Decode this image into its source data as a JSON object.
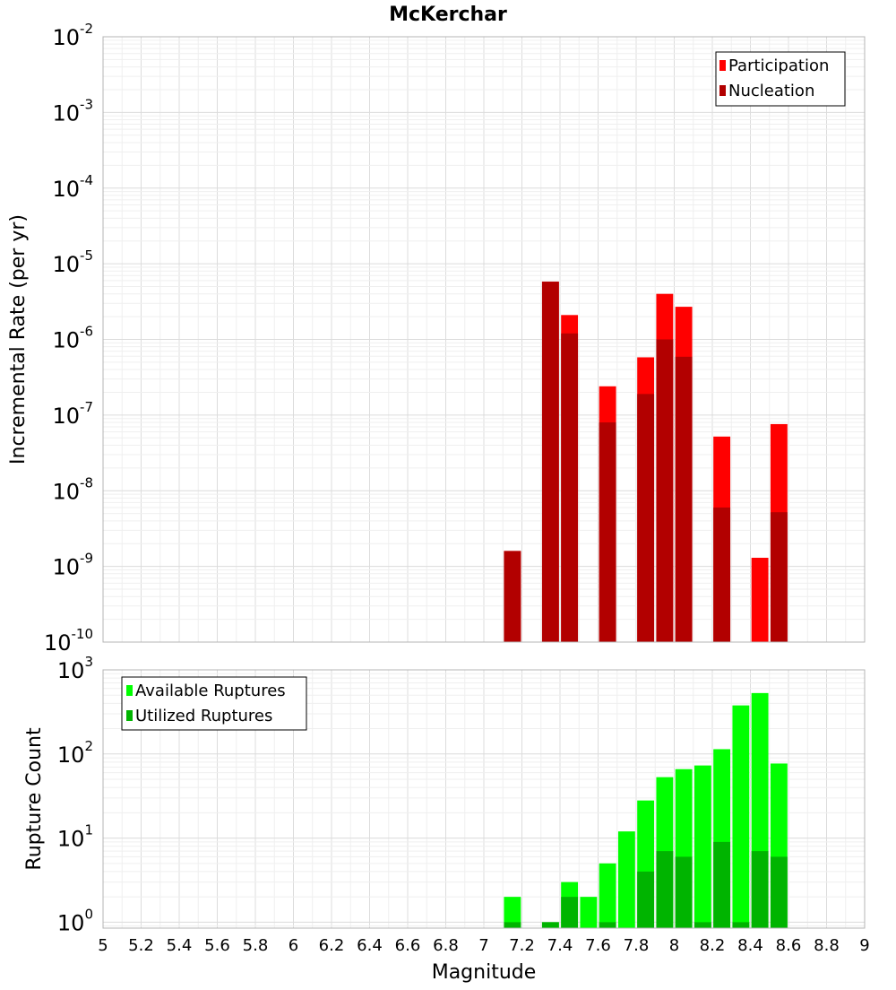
{
  "colors": {
    "participation": "#ff0000",
    "nucleation": "#b20000",
    "available": "#00ff00",
    "utilized": "#00b400",
    "grid_major": "#dcdcdc",
    "grid_minor": "#efefef",
    "frame": "#b4b4b4"
  },
  "chart_data": [
    {
      "type": "bar",
      "title": "McKerchar",
      "xlabel": "",
      "ylabel": "Incremental Rate (per yr)",
      "yscale": "log",
      "ylim": [
        1e-10,
        0.01
      ],
      "xlim": [
        5,
        9
      ],
      "bin_width": 0.1,
      "grid": true,
      "legend_position": "top-right",
      "y_ticks": [
        {
          "base": "10",
          "exp": "-10",
          "value": 1e-10
        },
        {
          "base": "10",
          "exp": "-9",
          "value": 1e-09
        },
        {
          "base": "10",
          "exp": "-8",
          "value": 1e-08
        },
        {
          "base": "10",
          "exp": "-7",
          "value": 1e-07
        },
        {
          "base": "10",
          "exp": "-6",
          "value": 1e-06
        },
        {
          "base": "10",
          "exp": "-5",
          "value": 1e-05
        },
        {
          "base": "10",
          "exp": "-4",
          "value": 0.0001
        },
        {
          "base": "10",
          "exp": "-3",
          "value": 0.001
        },
        {
          "base": "10",
          "exp": "-2",
          "value": 0.01
        }
      ],
      "series": [
        {
          "name": "Participation",
          "color": "#ff0000",
          "x": [
            7.15,
            7.35,
            7.45,
            7.65,
            7.85,
            7.95,
            8.05,
            8.25,
            8.45,
            8.55
          ],
          "values": [
            1.6e-09,
            5.8e-06,
            2.1e-06,
            2.4e-07,
            5.8e-07,
            4e-06,
            2.7e-06,
            5.2e-08,
            1.3e-09,
            7.6e-08
          ]
        },
        {
          "name": "Nucleation",
          "color": "#b20000",
          "x": [
            7.15,
            7.35,
            7.45,
            7.65,
            7.85,
            7.95,
            8.05,
            8.25,
            8.55
          ],
          "values": [
            1.6e-09,
            5.8e-06,
            1.2e-06,
            8e-08,
            1.9e-07,
            1e-06,
            5.9e-07,
            6e-09,
            5.2e-09
          ]
        }
      ]
    },
    {
      "type": "bar",
      "title": "",
      "xlabel": "Magnitude",
      "ylabel": "Rupture Count",
      "yscale": "log",
      "ylim": [
        0.85,
        1000
      ],
      "xlim": [
        5,
        9
      ],
      "bin_width": 0.1,
      "grid": true,
      "legend_position": "top-left",
      "x_ticks": [
        "5",
        "5.2",
        "5.4",
        "5.6",
        "5.8",
        "6",
        "6.2",
        "6.4",
        "6.6",
        "6.8",
        "7",
        "7.2",
        "7.4",
        "7.6",
        "7.8",
        "8",
        "8.2",
        "8.4",
        "8.6",
        "8.8",
        "9"
      ],
      "y_ticks": [
        {
          "base": "10",
          "exp": "0",
          "value": 1
        },
        {
          "base": "10",
          "exp": "1",
          "value": 10
        },
        {
          "base": "10",
          "exp": "2",
          "value": 100
        },
        {
          "base": "10",
          "exp": "3",
          "value": 1000
        }
      ],
      "series": [
        {
          "name": "Available Ruptures",
          "color": "#00ff00",
          "x": [
            7.15,
            7.35,
            7.45,
            7.55,
            7.65,
            7.75,
            7.85,
            7.95,
            8.05,
            8.15,
            8.25,
            8.35,
            8.45,
            8.55
          ],
          "values": [
            2,
            1,
            3,
            2,
            5,
            12,
            28,
            53,
            66,
            73,
            114,
            378,
            530,
            77
          ]
        },
        {
          "name": "Utilized Ruptures",
          "color": "#00b400",
          "x": [
            7.15,
            7.35,
            7.45,
            7.65,
            7.85,
            7.95,
            8.05,
            8.15,
            8.25,
            8.35,
            8.45,
            8.55
          ],
          "values": [
            1,
            1,
            2,
            1,
            4,
            7,
            6,
            1,
            9,
            1,
            7,
            6
          ]
        }
      ]
    }
  ]
}
